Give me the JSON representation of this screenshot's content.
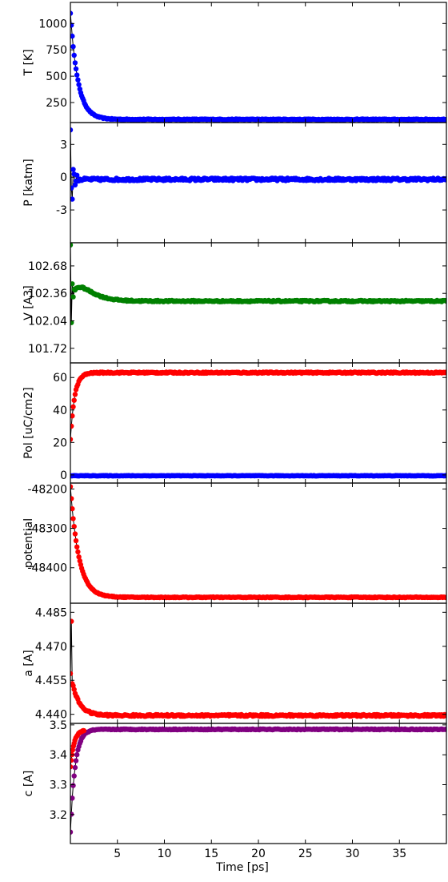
{
  "chart_data": [
    {
      "type": "scatter",
      "ylabel": "T [K]",
      "xlim": [
        0,
        40
      ],
      "ylim": [
        60,
        1200
      ],
      "yticks": [
        {
          "value": 250,
          "label": "250"
        },
        {
          "value": 500,
          "label": "500"
        },
        {
          "value": 750,
          "label": "750"
        },
        {
          "value": 1000,
          "label": "1000"
        }
      ],
      "series": [
        {
          "color": "#0000ff",
          "kind": "decay",
          "start": 1100,
          "end": 90,
          "tau": 0.8,
          "noise": 4,
          "tmax": 40,
          "step": 0.1
        }
      ]
    },
    {
      "type": "scatter",
      "ylabel": "P [katm]",
      "xlim": [
        0,
        40
      ],
      "ylim": [
        -6,
        5
      ],
      "yticks": [
        {
          "value": -3,
          "label": "-3"
        },
        {
          "value": 0,
          "label": "0"
        },
        {
          "value": 3,
          "label": "3"
        }
      ],
      "series": [
        {
          "color": "#0000ff",
          "kind": "oscillation",
          "base": -0.2,
          "amp": 4.5,
          "tau": 0.25,
          "period": 0.35,
          "noise": 0.12,
          "tmax": 40,
          "step": 0.1
        }
      ]
    },
    {
      "type": "scatter",
      "ylabel": "V [A3]",
      "xlim": [
        0,
        40
      ],
      "ylim": [
        101.55,
        102.95
      ],
      "yticks": [
        {
          "value": 101.72,
          "label": "101.72"
        },
        {
          "value": 102.04,
          "label": "102.04"
        },
        {
          "value": 102.36,
          "label": "102.36"
        },
        {
          "value": 102.68,
          "label": "102.68"
        }
      ],
      "series": [
        {
          "color": "#008000",
          "kind": "bump",
          "base": 102.27,
          "bump": 0.18,
          "tau": 1.0,
          "osc": 0.65,
          "osc_tau": 0.12,
          "period": 0.2,
          "noise": 0.008,
          "tmax": 40,
          "step": 0.1
        }
      ]
    },
    {
      "type": "scatter",
      "ylabel": "Pol [uC/cm2]",
      "xlim": [
        0,
        40
      ],
      "ylim": [
        -5,
        69
      ],
      "yticks": [
        {
          "value": 0,
          "label": "0"
        },
        {
          "value": 20,
          "label": "20"
        },
        {
          "value": 40,
          "label": "40"
        },
        {
          "value": 60,
          "label": "60"
        }
      ],
      "series": [
        {
          "color": "#ff0000",
          "kind": "rise",
          "start": 22,
          "end": 63,
          "tau": 0.45,
          "noise": 0.4,
          "tmax": 40,
          "step": 0.1
        },
        {
          "color": "#0000ff",
          "kind": "constant",
          "value": -0.5,
          "noise": 0.15,
          "tmax": 40,
          "step": 0.1
        }
      ]
    },
    {
      "type": "scatter",
      "ylabel": "potential",
      "xlim": [
        0,
        40
      ],
      "ylim": [
        -48490,
        -48185
      ],
      "yticks": [
        {
          "value": -48400,
          "label": "-48400"
        },
        {
          "value": -48300,
          "label": "-48300"
        },
        {
          "value": -48200,
          "label": "-48200"
        }
      ],
      "series": [
        {
          "color": "#ff0000",
          "kind": "decay",
          "start": -48195,
          "end": -48475,
          "tau": 0.9,
          "noise": 1,
          "tmax": 40,
          "step": 0.1
        }
      ]
    },
    {
      "type": "scatter",
      "ylabel": "a [A]",
      "xlim": [
        0,
        40
      ],
      "ylim": [
        4.436,
        4.489
      ],
      "yticks": [
        {
          "value": 4.44,
          "label": "4.440"
        },
        {
          "value": 4.455,
          "label": "4.455"
        },
        {
          "value": 4.47,
          "label": "4.470"
        },
        {
          "value": 4.485,
          "label": "4.485"
        }
      ],
      "series": [
        {
          "color": "#ff0000",
          "kind": "decay",
          "start": 4.458,
          "end": 4.4395,
          "tau": 0.8,
          "noise": 0.0004,
          "tmax": 40,
          "step": 0.1,
          "spike": 4.481
        }
      ]
    },
    {
      "type": "scatter",
      "ylabel": "c [A]",
      "xlabel": "Time [ps]",
      "xlim": [
        0,
        40
      ],
      "ylim": [
        3.103,
        3.505
      ],
      "yticks": [
        {
          "value": 3.2,
          "label": "3.2"
        },
        {
          "value": 3.3,
          "label": "3.3"
        },
        {
          "value": 3.4,
          "label": "3.4"
        },
        {
          "value": 3.5,
          "label": "3.5"
        }
      ],
      "xticks": [
        {
          "value": 5,
          "label": "5"
        },
        {
          "value": 10,
          "label": "10"
        },
        {
          "value": 15,
          "label": "15"
        },
        {
          "value": 20,
          "label": "20"
        },
        {
          "value": 25,
          "label": "25"
        },
        {
          "value": 30,
          "label": "30"
        },
        {
          "value": 35,
          "label": "35"
        }
      ],
      "series": [
        {
          "color": "#800080",
          "kind": "rise",
          "start": 3.14,
          "end": 3.485,
          "tau": 0.5,
          "noise": 0.0015,
          "tmax": 40,
          "step": 0.1
        },
        {
          "color": "#ff0000",
          "kind": "rise",
          "start": 3.36,
          "end": 3.485,
          "tau": 0.4,
          "noise": 0.0015,
          "tmax": 1.5,
          "step": 0.08
        }
      ]
    }
  ]
}
